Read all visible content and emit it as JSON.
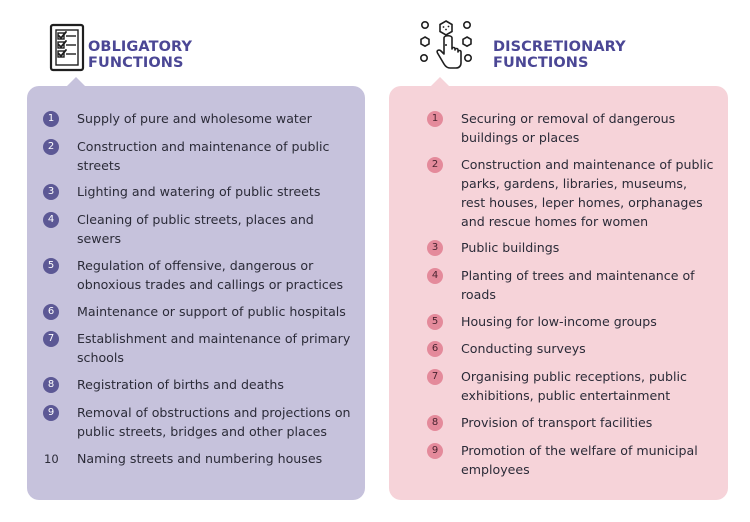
{
  "obligatory": {
    "title_line1": "OBLIGATORY",
    "title_line2": "FUNCTIONS",
    "icon": "checklist-icon",
    "color_panel": "#c6c2dc",
    "color_badge": "#5c5895",
    "items": [
      {
        "num": "1",
        "text": "Supply of pure and wholesome water"
      },
      {
        "num": "2",
        "text": "Construction and maintenance of public streets"
      },
      {
        "num": "3",
        "text": "Lighting and watering of public streets"
      },
      {
        "num": "4",
        "text": "Cleaning of public streets, places and sewers"
      },
      {
        "num": "5",
        "text": "Regulation of offensive, dangerous or obnoxious trades and callings or practices"
      },
      {
        "num": "6",
        "text": "Maintenance or support of public hospitals"
      },
      {
        "num": "7",
        "text": "Establishment and maintenance of primary schools"
      },
      {
        "num": "8",
        "text": "Registration of births and deaths"
      },
      {
        "num": "9",
        "text": "Removal of obstructions and projections on public streets, bridges and other places"
      },
      {
        "num": "10",
        "text": "Naming streets and numbering houses"
      }
    ]
  },
  "discretionary": {
    "title_line1": "DISCRETIONARY",
    "title_line2": "FUNCTIONS",
    "icon": "hand-choosing-icon",
    "color_panel": "#f6d3d9",
    "color_badge": "#e48a9b",
    "items": [
      {
        "num": "1",
        "text": "Securing or removal of dangerous buildings or places"
      },
      {
        "num": "2",
        "text": "Construction and maintenance of public parks, gardens, libraries, museums, rest houses, leper homes, orphanages and rescue homes for women"
      },
      {
        "num": "3",
        "text": "Public buildings"
      },
      {
        "num": "4",
        "text": "Planting of trees and maintenance of roads"
      },
      {
        "num": "5",
        "text": "Housing for low-income groups"
      },
      {
        "num": "6",
        "text": "Conducting surveys"
      },
      {
        "num": "7",
        "text": "Organising public receptions, public exhibitions, public entertainment"
      },
      {
        "num": "8",
        "text": "Provision of transport facilities"
      },
      {
        "num": "9",
        "text": "Promotion of the welfare of municipal employees"
      }
    ]
  }
}
